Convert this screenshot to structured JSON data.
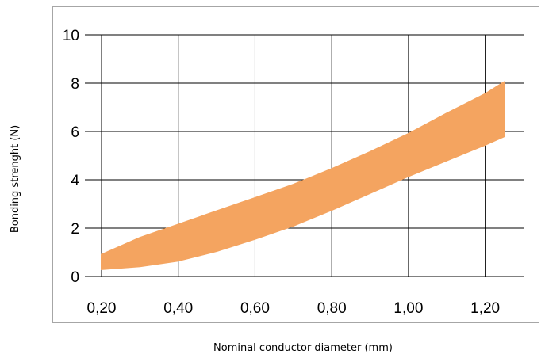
{
  "chart_data": {
    "type": "area",
    "title": "",
    "xlabel": "Nominal conductor diameter (mm)",
    "ylabel": "Bonding strenght (N)",
    "x_tick_labels": [
      "0,20",
      "0,40",
      "0,60",
      "0,80",
      "1,00",
      "1,20"
    ],
    "x_ticks": [
      0.2,
      0.4,
      0.6,
      0.8,
      1.0,
      1.2
    ],
    "y_tick_labels": [
      "0",
      "2",
      "4",
      "6",
      "8",
      "10"
    ],
    "y_ticks": [
      0,
      2,
      4,
      6,
      8,
      10
    ],
    "xlim": [
      0.2,
      1.3
    ],
    "ylim": [
      0,
      10
    ],
    "grid": "vertical and horizontal major gridlines",
    "legend": "none",
    "series": [
      {
        "type": "band",
        "color": "#f4a460",
        "x": [
          0.2,
          0.3,
          0.4,
          0.5,
          0.6,
          0.7,
          0.8,
          0.9,
          1.0,
          1.1,
          1.2,
          1.25
        ],
        "upper": [
          0.9,
          1.6,
          2.15,
          2.7,
          3.25,
          3.8,
          4.45,
          5.15,
          5.9,
          6.75,
          7.55,
          8.05
        ],
        "lower": [
          0.3,
          0.42,
          0.65,
          1.05,
          1.55,
          2.1,
          2.75,
          3.45,
          4.15,
          4.8,
          5.45,
          5.8
        ]
      }
    ]
  }
}
